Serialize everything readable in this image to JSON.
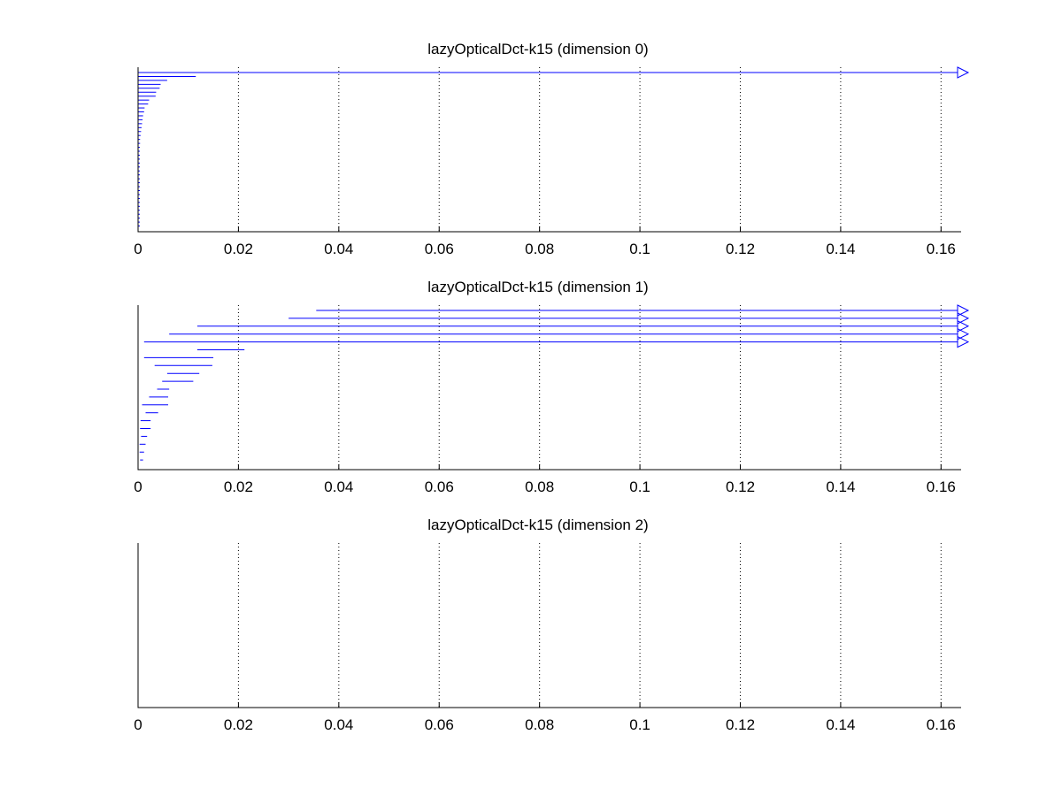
{
  "chart_data": [
    {
      "type": "barcode",
      "title": "lazyOpticalDct-k15 (dimension 0)",
      "xlim": [
        0,
        0.164
      ],
      "xticks": [
        "0",
        "0.02",
        "0.04",
        "0.06",
        "0.08",
        "0.1",
        "0.12",
        "0.14",
        "0.16"
      ],
      "xtick_values": [
        0,
        0.02,
        0.04,
        0.06,
        0.08,
        0.1,
        0.12,
        0.14,
        0.16
      ],
      "grid": "vertical-dotted",
      "bar_color": "#0000ff",
      "intervals": [
        {
          "birth": 0,
          "death": null
        },
        {
          "birth": 0,
          "death": 0.0115
        },
        {
          "birth": 0,
          "death": 0.0058
        },
        {
          "birth": 0,
          "death": 0.0045
        },
        {
          "birth": 0,
          "death": 0.0043
        },
        {
          "birth": 0,
          "death": 0.0036
        },
        {
          "birth": 0,
          "death": 0.0035
        },
        {
          "birth": 0,
          "death": 0.0022
        },
        {
          "birth": 0,
          "death": 0.002
        },
        {
          "birth": 0,
          "death": 0.0013
        },
        {
          "birth": 0,
          "death": 0.0012
        },
        {
          "birth": 0,
          "death": 0.001
        },
        {
          "birth": 0,
          "death": 0.0009
        },
        {
          "birth": 0,
          "death": 0.0008
        },
        {
          "birth": 0,
          "death": 0.0007
        },
        {
          "birth": 0,
          "death": 0.0006
        },
        {
          "birth": 0,
          "death": 0.0005
        },
        {
          "birth": 0,
          "death": 0.0004
        },
        {
          "birth": 0,
          "death": 0.0004
        },
        {
          "birth": 0,
          "death": 0.0003
        },
        {
          "birth": 0,
          "death": 0.0003
        },
        {
          "birth": 0,
          "death": 0.0003
        },
        {
          "birth": 0,
          "death": 0.0002
        },
        {
          "birth": 0,
          "death": 0.0002
        },
        {
          "birth": 0,
          "death": 0.0002
        },
        {
          "birth": 0,
          "death": 0.0002
        },
        {
          "birth": 0,
          "death": 0.0002
        },
        {
          "birth": 0,
          "death": 0.0001
        },
        {
          "birth": 0,
          "death": 0.0001
        },
        {
          "birth": 0,
          "death": 0.0001
        },
        {
          "birth": 0,
          "death": 0.0001
        },
        {
          "birth": 0,
          "death": 0.0001
        },
        {
          "birth": 0,
          "death": 0.0001
        },
        {
          "birth": 0,
          "death": 0.0001
        },
        {
          "birth": 0,
          "death": 0.0001
        },
        {
          "birth": 0,
          "death": 0.0001
        },
        {
          "birth": 0,
          "death": 0.0001
        },
        {
          "birth": 0,
          "death": 0.0001
        },
        {
          "birth": 0,
          "death": 0.0001
        },
        {
          "birth": 0,
          "death": 0.0001
        }
      ]
    },
    {
      "type": "barcode",
      "title": "lazyOpticalDct-k15 (dimension 1)",
      "xlim": [
        0,
        0.164
      ],
      "xticks": [
        "0",
        "0.02",
        "0.04",
        "0.06",
        "0.08",
        "0.1",
        "0.12",
        "0.14",
        "0.16"
      ],
      "xtick_values": [
        0,
        0.02,
        0.04,
        0.06,
        0.08,
        0.1,
        0.12,
        0.14,
        0.16
      ],
      "grid": "vertical-dotted",
      "bar_color": "#0000ff",
      "intervals": [
        {
          "birth": 0.0355,
          "death": null
        },
        {
          "birth": 0.03,
          "death": null
        },
        {
          "birth": 0.0118,
          "death": null
        },
        {
          "birth": 0.0062,
          "death": null
        },
        {
          "birth": 0.0012,
          "death": null
        },
        {
          "birth": 0.0118,
          "death": 0.0212
        },
        {
          "birth": 0.0012,
          "death": 0.015
        },
        {
          "birth": 0.0033,
          "death": 0.0148
        },
        {
          "birth": 0.0058,
          "death": 0.0122
        },
        {
          "birth": 0.0048,
          "death": 0.011
        },
        {
          "birth": 0.0038,
          "death": 0.0062
        },
        {
          "birth": 0.0022,
          "death": 0.006
        },
        {
          "birth": 0.0008,
          "death": 0.006
        },
        {
          "birth": 0.0015,
          "death": 0.004
        },
        {
          "birth": 0.0005,
          "death": 0.0025
        },
        {
          "birth": 0.0004,
          "death": 0.0025
        },
        {
          "birth": 0.0006,
          "death": 0.0018
        },
        {
          "birth": 0.0003,
          "death": 0.0015
        },
        {
          "birth": 0.0003,
          "death": 0.0012
        },
        {
          "birth": 0.0004,
          "death": 0.001
        }
      ]
    },
    {
      "type": "barcode",
      "title": "lazyOpticalDct-k15 (dimension 2)",
      "xlim": [
        0,
        0.164
      ],
      "xticks": [
        "0",
        "0.02",
        "0.04",
        "0.06",
        "0.08",
        "0.1",
        "0.12",
        "0.14",
        "0.16"
      ],
      "xtick_values": [
        0,
        0.02,
        0.04,
        0.06,
        0.08,
        0.1,
        0.12,
        0.14,
        0.16
      ],
      "grid": "vertical-dotted",
      "bar_color": "#0000ff",
      "intervals": []
    }
  ]
}
